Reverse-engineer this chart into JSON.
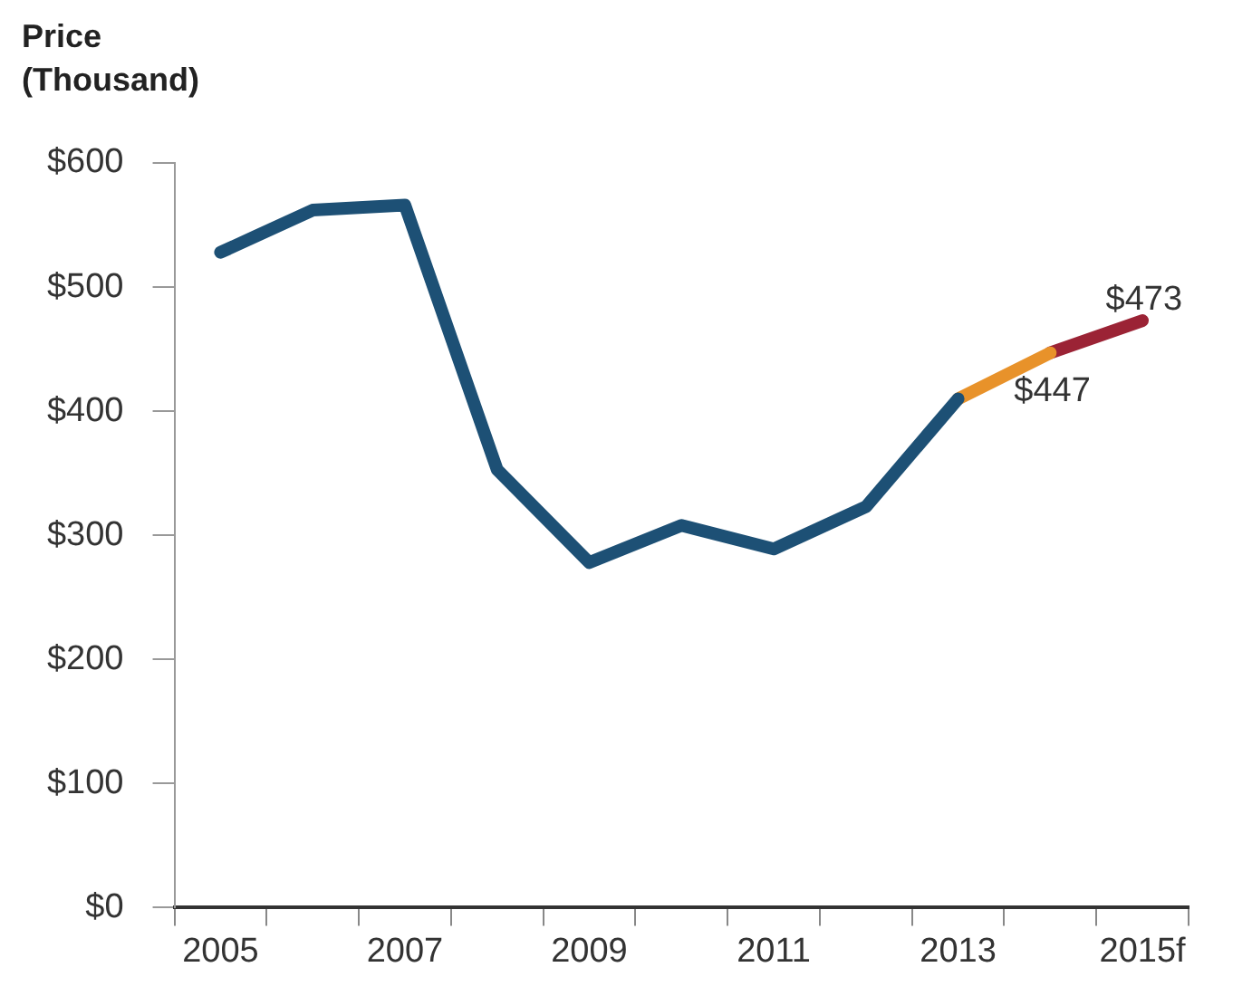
{
  "chart_data": {
    "type": "line",
    "ylabel": "Price\n(Thousand)",
    "categories": [
      "2005",
      null,
      "2007",
      null,
      "2009",
      null,
      "2011",
      null,
      "2013",
      null,
      "2015f"
    ],
    "series": [
      {
        "color": "#1d5075",
        "values": [
          528,
          562,
          566,
          353,
          278,
          308,
          289,
          323,
          410,
          null,
          null
        ]
      },
      {
        "color": "#e8922a",
        "values": [
          null,
          null,
          null,
          null,
          null,
          null,
          null,
          null,
          410,
          447,
          null
        ],
        "value_labels": [
          null,
          null,
          null,
          null,
          null,
          null,
          null,
          null,
          null,
          "$447",
          null
        ]
      },
      {
        "color": "#9b2335",
        "values": [
          null,
          null,
          null,
          null,
          null,
          null,
          null,
          null,
          null,
          447,
          473
        ],
        "value_labels": [
          null,
          null,
          null,
          null,
          null,
          null,
          null,
          null,
          null,
          null,
          "$473"
        ]
      }
    ],
    "ylim": [
      0,
      600
    ],
    "yticks": [
      {
        "value": 0,
        "label": "$0"
      },
      {
        "value": 100,
        "label": "$100"
      },
      {
        "value": 200,
        "label": "$200"
      },
      {
        "value": 300,
        "label": "$300"
      },
      {
        "value": 400,
        "label": "$400"
      },
      {
        "value": 500,
        "label": "$500"
      },
      {
        "value": 600,
        "label": "$600"
      }
    ],
    "grid": false,
    "legend": false,
    "marker": "none",
    "line_style": "solid"
  }
}
